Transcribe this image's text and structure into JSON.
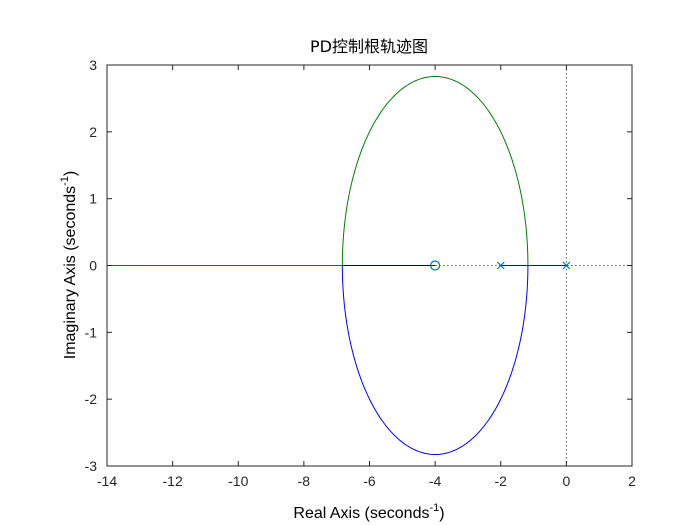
{
  "chart_data": {
    "type": "line",
    "title": "PD控制根轨迹图",
    "xlabel": {
      "main": "Real Axis (seconds",
      "sup": "-1",
      "end": ")"
    },
    "ylabel": {
      "main": "Imaginary Axis (seconds",
      "sup": "-1",
      "end": ")"
    },
    "xlim": [
      -14,
      2
    ],
    "ylim": [
      -3,
      3
    ],
    "xticks": [
      -14,
      -12,
      -10,
      -8,
      -6,
      -4,
      -2,
      0,
      2
    ],
    "yticks": [
      -3,
      -2,
      -1,
      0,
      1,
      2,
      3
    ],
    "grid": false,
    "poles": [
      [
        -2,
        0
      ],
      [
        0,
        0
      ]
    ],
    "zeros": [
      [
        -4,
        0
      ]
    ],
    "circle": {
      "center": [
        -4,
        0
      ],
      "radius": 2.828
    },
    "series": [
      {
        "color": "#0000ff",
        "segments": [
          "real-axis -2..0",
          "lower arc",
          "real-axis -4..-6.83"
        ]
      },
      {
        "color": "#008000",
        "segments": [
          "upper arc",
          "real-axis -6.83..-14"
        ]
      }
    ],
    "colors": {
      "blue": "#0000ff",
      "green": "#008000",
      "marker": "#0072bd",
      "axis": "#262626",
      "dotted": "#555555"
    }
  }
}
